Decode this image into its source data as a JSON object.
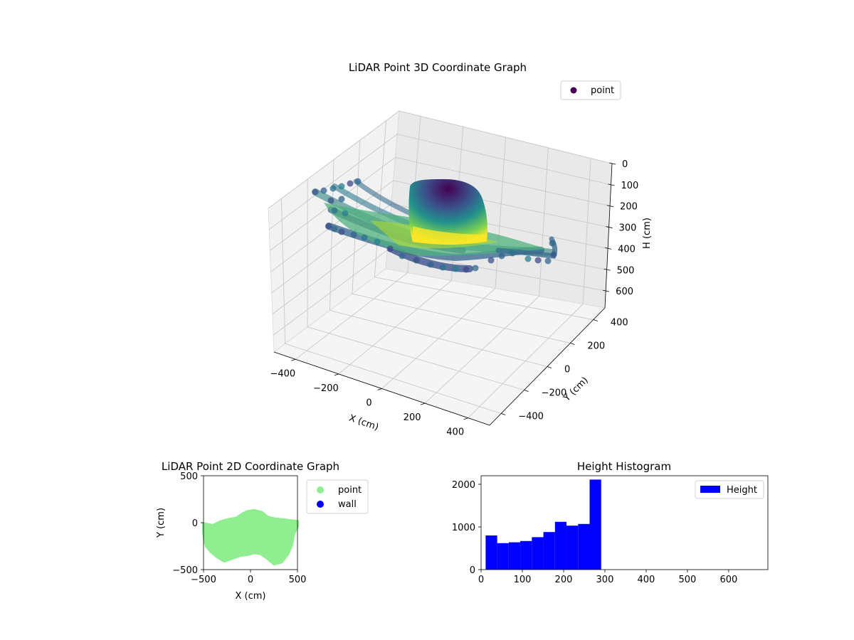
{
  "chart_data": [
    {
      "type": "scatter3d",
      "title": "LiDAR Point 3D Coordinate Graph",
      "xlabel": "X (cm)",
      "ylabel": "Y (cm)",
      "zlabel": "H (cm)",
      "xlim": [
        -500,
        500
      ],
      "ylim": [
        -500,
        500
      ],
      "zlim": [
        0,
        680
      ],
      "z_inverted": true,
      "x_ticks": [
        "−400",
        "−200",
        "0",
        "200",
        "400"
      ],
      "y_ticks": [
        "−400",
        "−200",
        "0",
        "200",
        "400"
      ],
      "z_ticks": [
        "0",
        "100",
        "200",
        "300",
        "400",
        "500",
        "600"
      ],
      "grid": true,
      "legend": {
        "placement": "upper-right",
        "entries": [
          {
            "name": "point",
            "color": "#440154"
          }
        ]
      },
      "colormap": "viridis"
    },
    {
      "type": "scatter",
      "title": "LiDAR Point 2D Coordinate Graph",
      "xlabel": "X (cm)",
      "ylabel": "Y (cm)",
      "xlim": [
        -500,
        500
      ],
      "ylim": [
        -500,
        500
      ],
      "x_ticks": [
        "−500",
        "0",
        "500"
      ],
      "y_ticks": [
        "500",
        "0",
        "−500"
      ],
      "series": [
        {
          "name": "point",
          "color": "#90ee90"
        },
        {
          "name": "wall",
          "color": "#0000ff"
        }
      ],
      "legend": {
        "placement": "outside-right"
      },
      "outline": [
        [
          -500,
          -10
        ],
        [
          -400,
          -30
        ],
        [
          -360,
          -10
        ],
        [
          -320,
          10
        ],
        [
          -250,
          30
        ],
        [
          -150,
          50
        ],
        [
          -90,
          90
        ],
        [
          -30,
          120
        ],
        [
          40,
          130
        ],
        [
          120,
          110
        ],
        [
          180,
          60
        ],
        [
          260,
          40
        ],
        [
          360,
          30
        ],
        [
          440,
          20
        ],
        [
          500,
          15
        ],
        [
          500,
          -40
        ],
        [
          460,
          -120
        ],
        [
          440,
          -230
        ],
        [
          400,
          -330
        ],
        [
          330,
          -420
        ],
        [
          250,
          -440
        ],
        [
          180,
          -380
        ],
        [
          110,
          -330
        ],
        [
          40,
          -320
        ],
        [
          -30,
          -340
        ],
        [
          -110,
          -350
        ],
        [
          -200,
          -380
        ],
        [
          -280,
          -410
        ],
        [
          -360,
          -360
        ],
        [
          -420,
          -310
        ],
        [
          -470,
          -250
        ],
        [
          -490,
          -180
        ],
        [
          -500,
          -100
        ]
      ]
    },
    {
      "type": "histogram",
      "title": "Height Histogram",
      "xlim": [
        0,
        695
      ],
      "ylim": [
        0,
        2200
      ],
      "x_ticks": [
        "0",
        "100",
        "200",
        "300",
        "400",
        "500",
        "600"
      ],
      "y_ticks": [
        "0",
        "1000",
        "2000"
      ],
      "bar_color": "#0000ff",
      "legend": {
        "placement": "upper-right",
        "entries": [
          {
            "name": "Height",
            "color": "#0000ff"
          }
        ]
      },
      "bins": [
        {
          "x0": 11,
          "x1": 39,
          "value": 800
        },
        {
          "x0": 39,
          "x1": 67,
          "value": 620
        },
        {
          "x0": 67,
          "x1": 95,
          "value": 640
        },
        {
          "x0": 95,
          "x1": 123,
          "value": 670
        },
        {
          "x0": 123,
          "x1": 151,
          "value": 760
        },
        {
          "x0": 151,
          "x1": 179,
          "value": 880
        },
        {
          "x0": 179,
          "x1": 207,
          "value": 1120
        },
        {
          "x0": 207,
          "x1": 235,
          "value": 1030
        },
        {
          "x0": 235,
          "x1": 263,
          "value": 1070
        },
        {
          "x0": 263,
          "x1": 291,
          "value": 2110
        }
      ]
    }
  ]
}
